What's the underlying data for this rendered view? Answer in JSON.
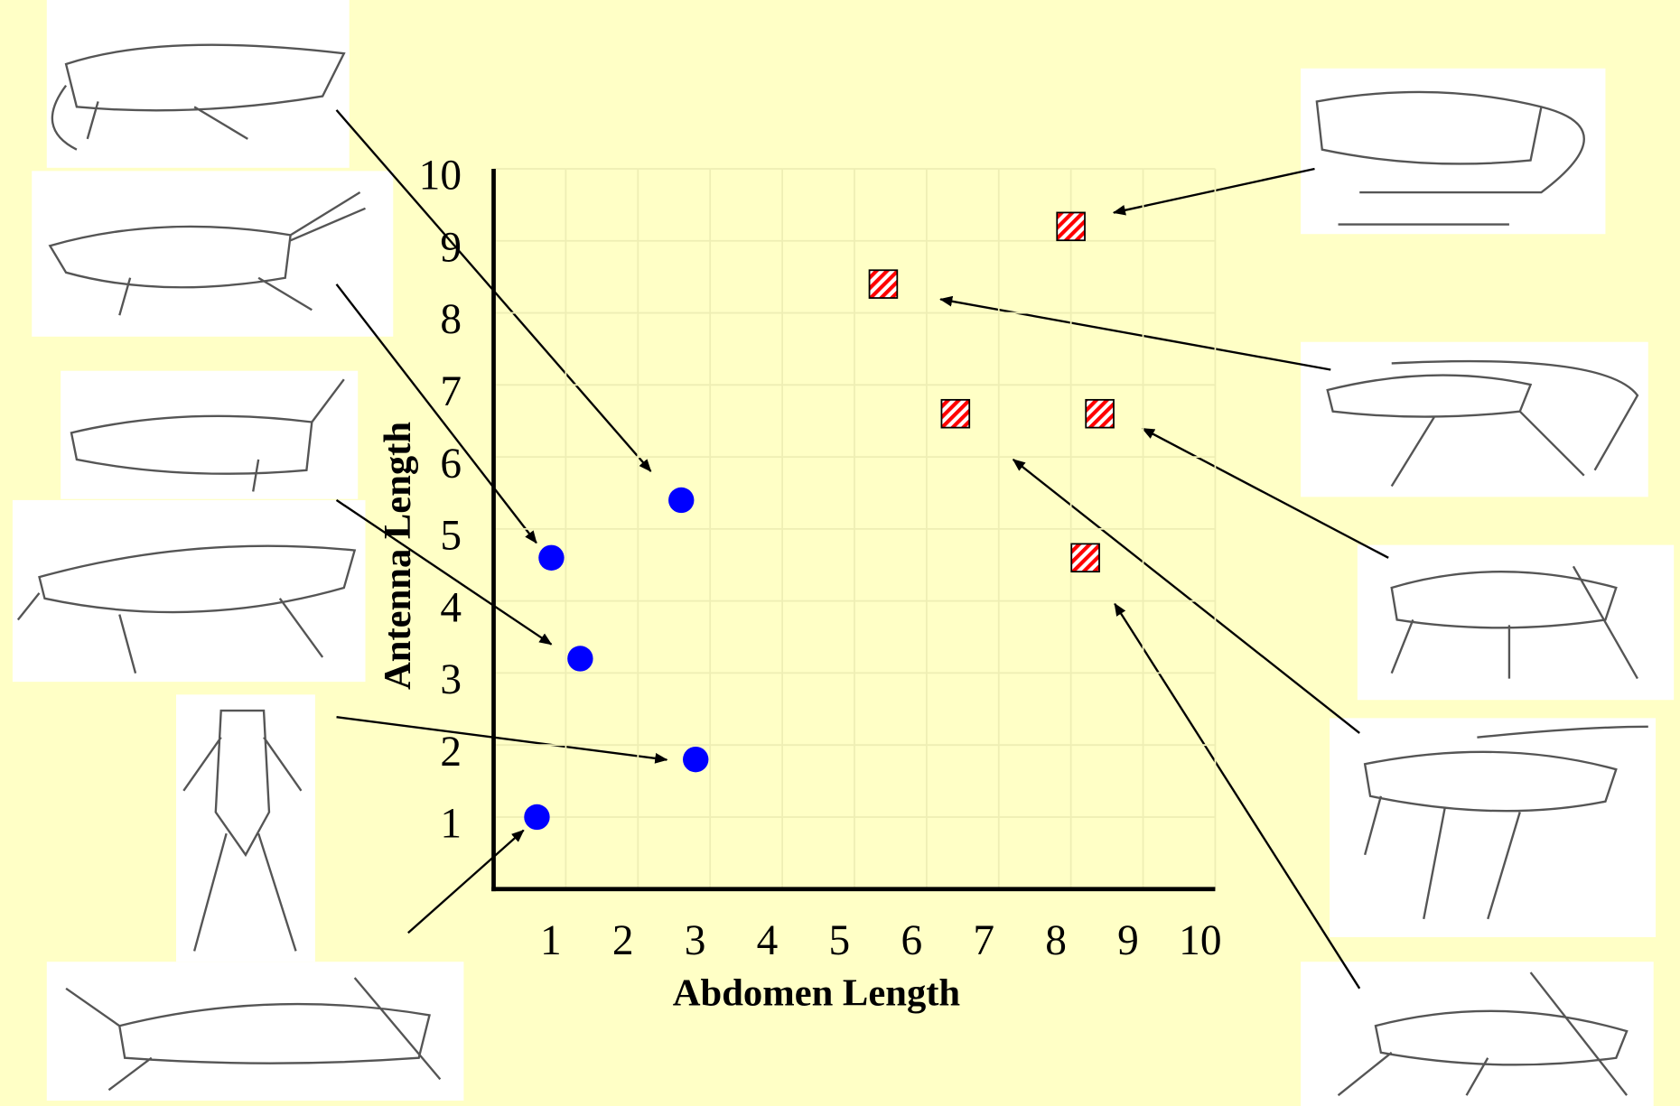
{
  "chart_data": {
    "type": "scatter",
    "x_label": "Abdomen Length",
    "y_label": "Antenna Length",
    "xlim": [
      0,
      10
    ],
    "ylim": [
      0,
      10
    ],
    "xticks": [
      1,
      2,
      3,
      4,
      5,
      6,
      7,
      8,
      9,
      10
    ],
    "yticks": [
      1,
      2,
      3,
      4,
      5,
      6,
      7,
      8,
      9,
      10
    ],
    "grid": true,
    "series": [
      {
        "color": "#0000ff",
        "marker": "circle",
        "x": [
          2.6,
          0.8,
          1.2,
          2.8,
          0.6
        ],
        "values": [
          5.4,
          4.6,
          3.2,
          1.8,
          1.0
        ]
      },
      {
        "color": "#ff0000",
        "marker": "hatched-square",
        "x": [
          8.0,
          5.4,
          6.4,
          8.4,
          8.2
        ],
        "values": [
          9.2,
          8.4,
          6.6,
          6.6,
          4.6
        ]
      }
    ]
  }
}
